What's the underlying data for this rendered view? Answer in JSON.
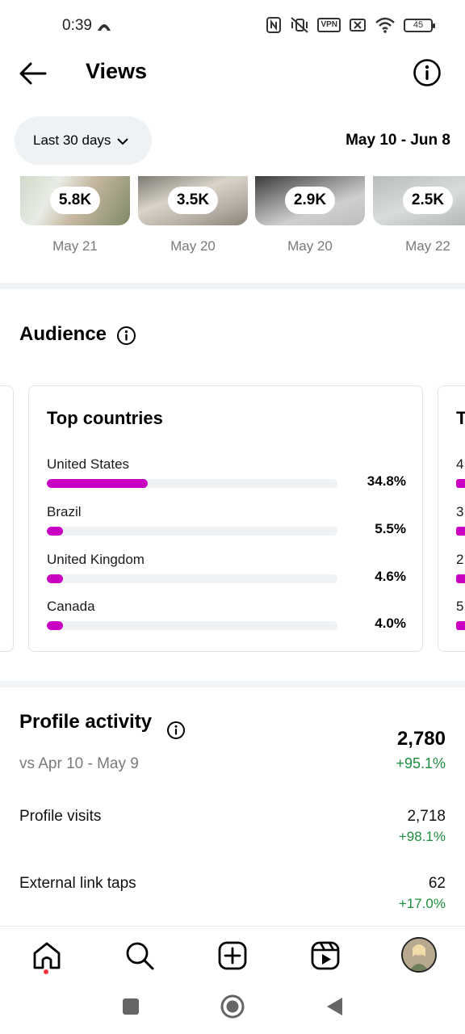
{
  "status_bar": {
    "time": "0:39",
    "vpn_label": "VPN",
    "battery": "45"
  },
  "header": {
    "title": "Views"
  },
  "filters": {
    "range_label": "Last 30 days",
    "date_range": "May 10 - Jun 8"
  },
  "top_content": [
    {
      "views": "5.8K",
      "date": "May 21"
    },
    {
      "views": "3.5K",
      "date": "May 20"
    },
    {
      "views": "2.9K",
      "date": "May 20"
    },
    {
      "views": "2.5K",
      "date": "May 22"
    }
  ],
  "audience": {
    "title": "Audience",
    "top_countries": {
      "title": "Top countries",
      "items": [
        {
          "name": "United States",
          "pct": "34.8%",
          "value": 34.8
        },
        {
          "name": "Brazil",
          "pct": "5.5%",
          "value": 5.5
        },
        {
          "name": "United Kingdom",
          "pct": "4.6%",
          "value": 4.6
        },
        {
          "name": "Canada",
          "pct": "4.0%",
          "value": 4.0
        }
      ]
    },
    "next_card_peek": {
      "title": "T",
      "items": [
        "4",
        "3",
        "2",
        "5"
      ]
    }
  },
  "profile_activity": {
    "title": "Profile activity",
    "compare": "vs Apr 10 - May 9",
    "total": "2,780",
    "total_change": "+95.1%",
    "metrics": [
      {
        "label": "Profile visits",
        "value": "2,718",
        "change": "+98.1%"
      },
      {
        "label": "External link taps",
        "value": "62",
        "change": "+17.0%"
      }
    ]
  },
  "colors": {
    "accent_bar": "#c800c0",
    "positive": "#1e8e3e",
    "track": "#eff2f4"
  }
}
